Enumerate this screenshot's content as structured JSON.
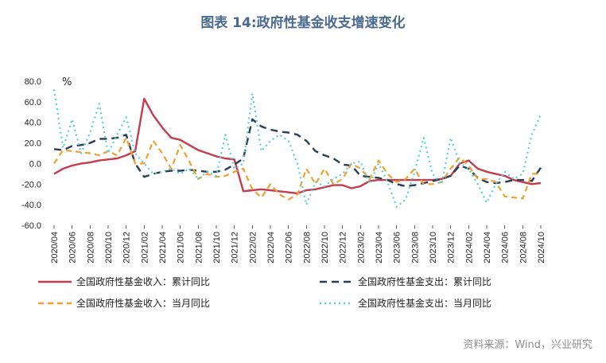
{
  "title": "图表 14:政府性基金收支增速变化",
  "source": "资料来源：Wind，兴业研究",
  "chart_data": {
    "type": "line",
    "yunit": "%",
    "ylim": [
      -60,
      80
    ],
    "yticks": [
      "80.0",
      "60.0",
      "40.0",
      "20.0",
      "0.0",
      "-20.0",
      "-40.0",
      "-60.0"
    ],
    "ytick_values": [
      80,
      60,
      40,
      20,
      0,
      -20,
      -40,
      -60
    ],
    "x": [
      "2020/04",
      "2020/05",
      "2020/06",
      "2020/07",
      "2020/08",
      "2020/09",
      "2020/10",
      "2020/11",
      "2020/12",
      "2021/01",
      "2021/02",
      "2021/03",
      "2021/04",
      "2021/05",
      "2021/06",
      "2021/07",
      "2021/08",
      "2021/09",
      "2021/10",
      "2021/11",
      "2021/12",
      "2022/01",
      "2022/02",
      "2022/03",
      "2022/04",
      "2022/05",
      "2022/06",
      "2022/07",
      "2022/08",
      "2022/09",
      "2022/10",
      "2022/11",
      "2022/12",
      "2023/01",
      "2023/02",
      "2023/03",
      "2023/04",
      "2023/05",
      "2023/06",
      "2023/07",
      "2023/08",
      "2023/09",
      "2023/10",
      "2023/11",
      "2023/12",
      "2024/01",
      "2024/02",
      "2024/03",
      "2024/04",
      "2024/05",
      "2024/06",
      "2024/07",
      "2024/08",
      "2024/09",
      "2024/10"
    ],
    "xtick_labels": [
      "2020/04",
      "2020/06",
      "2020/08",
      "2020/10",
      "2020/12",
      "2021/02",
      "2021/04",
      "2021/06",
      "2021/08",
      "2021/10",
      "2021/12",
      "2022/02",
      "2022/04",
      "2022/06",
      "2022/08",
      "2022/10",
      "2022/12",
      "2023/02",
      "2023/04",
      "2023/06",
      "2023/08",
      "2023/10",
      "2023/12",
      "2024/02",
      "2024/04",
      "2024/06",
      "2024/08",
      "2024/10"
    ],
    "series": [
      {
        "name": "全国政府性基金收入：累计同比",
        "color": "#c43c4d",
        "dash": "solid",
        "values": [
          -10,
          -5,
          -2,
          0,
          1,
          3,
          4,
          5,
          8,
          12,
          63,
          47,
          35,
          25,
          23,
          18,
          13,
          10,
          7,
          5,
          4,
          -27,
          -26,
          -25,
          -26,
          -27,
          -28,
          -29,
          -26,
          -25,
          -23,
          -21,
          -21,
          -24,
          -22,
          -17,
          -16,
          -16,
          -16,
          -16,
          -16,
          -16,
          -16,
          -15,
          -12,
          0,
          3,
          -5,
          -8,
          -10,
          -12,
          -16,
          -18,
          -20,
          -19
        ]
      },
      {
        "name": "全国政府性基金支出：累计同比",
        "color": "#2c3e55",
        "dash": "9,6",
        "values": [
          14,
          13,
          17,
          18,
          20,
          24,
          24,
          25,
          28,
          0,
          -13,
          -10,
          -8,
          -7,
          -7,
          -6,
          -7,
          -8,
          -8,
          -6,
          -1,
          5,
          43,
          36,
          33,
          31,
          30,
          28,
          22,
          12,
          8,
          5,
          -1,
          -2,
          -12,
          -13,
          -14,
          -16,
          -20,
          -22,
          -21,
          -19,
          -17,
          -15,
          -12,
          -2,
          -5,
          -14,
          -18,
          -19,
          -18,
          -16,
          -16,
          -17,
          -4
        ]
      },
      {
        "name": "全国政府性基金收入：当月同比",
        "color": "#f0a030",
        "dash": "7,5",
        "values": [
          0,
          13,
          12,
          11,
          10,
          8,
          12,
          8,
          25,
          0,
          0,
          22,
          10,
          -5,
          18,
          2,
          -15,
          -10,
          -13,
          -12,
          -8,
          -5,
          -25,
          -33,
          -20,
          -30,
          -35,
          -30,
          -5,
          -20,
          -5,
          -20,
          -15,
          0,
          -5,
          -15,
          3,
          -10,
          -18,
          -15,
          -5,
          -20,
          -20,
          -18,
          -5,
          6,
          -2,
          -15,
          -15,
          -18,
          -32,
          -33,
          -34,
          -10,
          -10
        ]
      },
      {
        "name": "全国政府性基金支出：当月同比",
        "color": "#55d0d5",
        "dash": "2,4",
        "values": [
          72,
          15,
          43,
          10,
          30,
          58,
          10,
          28,
          45,
          10,
          0,
          -10,
          -8,
          -5,
          -10,
          -5,
          -15,
          -8,
          -12,
          28,
          -5,
          0,
          68,
          12,
          22,
          28,
          22,
          0,
          -40,
          -18,
          -22,
          -15,
          -10,
          0,
          2,
          -20,
          0,
          -18,
          -42,
          -35,
          -8,
          25,
          -10,
          -20,
          25,
          0,
          -5,
          -20,
          -38,
          -20,
          -8,
          -15,
          -10,
          28,
          48
        ]
      }
    ]
  }
}
